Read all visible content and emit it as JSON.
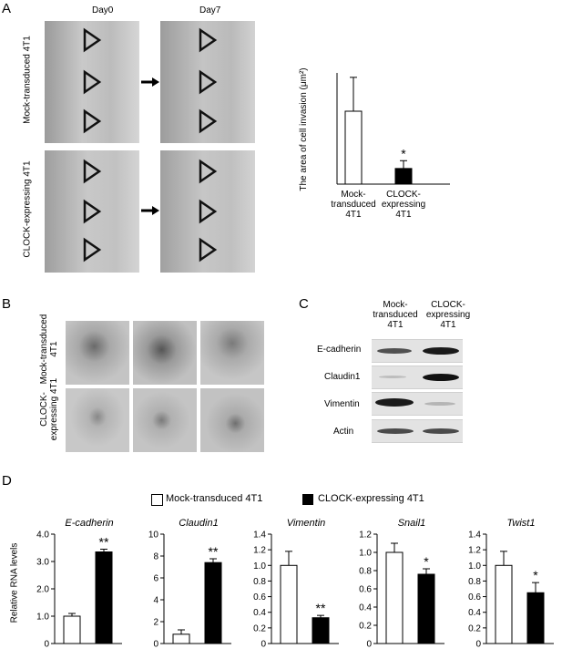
{
  "panelA": {
    "letter": "A",
    "day0": "Day0",
    "day7": "Day7",
    "row1": "Mock-transduced 4T1",
    "row2": "CLOCK-expressing 4T1"
  },
  "panelB": {
    "letter": "B",
    "row1": "Mock-transduced 4T1",
    "row2": "CLOCK-expressing 4T1"
  },
  "panelC": {
    "letter": "C",
    "col1": "Mock-transduced 4T1",
    "col2": "CLOCK-expressing 4T1",
    "rows": [
      "E-cadherin",
      "Claudin1",
      "Vimentin",
      "Actin"
    ]
  },
  "panelD": {
    "letter": "D",
    "legend": [
      "Mock-transduced 4T1",
      "CLOCK-expressing 4T1"
    ],
    "ylabel": "Relative RNA levels"
  },
  "colors": {
    "mock": "#ffffff",
    "clock": "#000000",
    "stroke": "#000000"
  },
  "chart_data": [
    {
      "type": "bar",
      "title": "",
      "ylabel": "The area of cell invasion (μm²)",
      "categories": [
        "Mock-transduced 4T1",
        "CLOCK-expressing 4T1"
      ],
      "values": [
        14,
        3
      ],
      "errors": [
        6.5,
        1.5
      ],
      "ylim": [
        0,
        21
      ],
      "annotations": [
        "",
        "*"
      ]
    },
    {
      "type": "bar",
      "title": "E-cadherin",
      "categories": [
        "Mock-transduced 4T1",
        "CLOCK-expressing 4T1"
      ],
      "values": [
        1.0,
        3.35
      ],
      "errors": [
        0.1,
        0.1
      ],
      "ylim": [
        0,
        4.0
      ],
      "ticks": [
        "0",
        "1.0",
        "2.0",
        "3.0",
        "4.0"
      ],
      "annotations": [
        "",
        "**"
      ]
    },
    {
      "type": "bar",
      "title": "Claudin1",
      "categories": [
        "Mock-transduced 4T1",
        "CLOCK-expressing 4T1"
      ],
      "values": [
        0.85,
        7.4
      ],
      "errors": [
        0.4,
        0.35
      ],
      "ylim": [
        0,
        10
      ],
      "ticks": [
        "0",
        "2",
        "4",
        "6",
        "8",
        "10"
      ],
      "annotations": [
        "",
        "**"
      ]
    },
    {
      "type": "bar",
      "title": "Vimentin",
      "categories": [
        "Mock-transduced 4T1",
        "CLOCK-expressing 4T1"
      ],
      "values": [
        1.0,
        0.33
      ],
      "errors": [
        0.18,
        0.03
      ],
      "ylim": [
        0,
        1.4
      ],
      "ticks": [
        "0",
        "0.2",
        "0.4",
        "0.6",
        "0.8",
        "1.0",
        "1.2",
        "1.4"
      ],
      "annotations": [
        "",
        "**"
      ]
    },
    {
      "type": "bar",
      "title": "Snail1",
      "categories": [
        "Mock-transduced 4T1",
        "CLOCK-expressing 4T1"
      ],
      "values": [
        1.0,
        0.76
      ],
      "errors": [
        0.1,
        0.06
      ],
      "ylim": [
        0,
        1.2
      ],
      "ticks": [
        "0",
        "0.2",
        "0.4",
        "0.6",
        "0.8",
        "1.0",
        "1.2"
      ],
      "annotations": [
        "",
        "*"
      ]
    },
    {
      "type": "bar",
      "title": "Twist1",
      "categories": [
        "Mock-transduced 4T1",
        "CLOCK-expressing 4T1"
      ],
      "values": [
        1.0,
        0.65
      ],
      "errors": [
        0.18,
        0.13
      ],
      "ylim": [
        0,
        1.4
      ],
      "ticks": [
        "0",
        "0.2",
        "0.4",
        "0.6",
        "0.8",
        "1.0",
        "1.2",
        "1.4"
      ],
      "annotations": [
        "",
        "*"
      ]
    }
  ]
}
